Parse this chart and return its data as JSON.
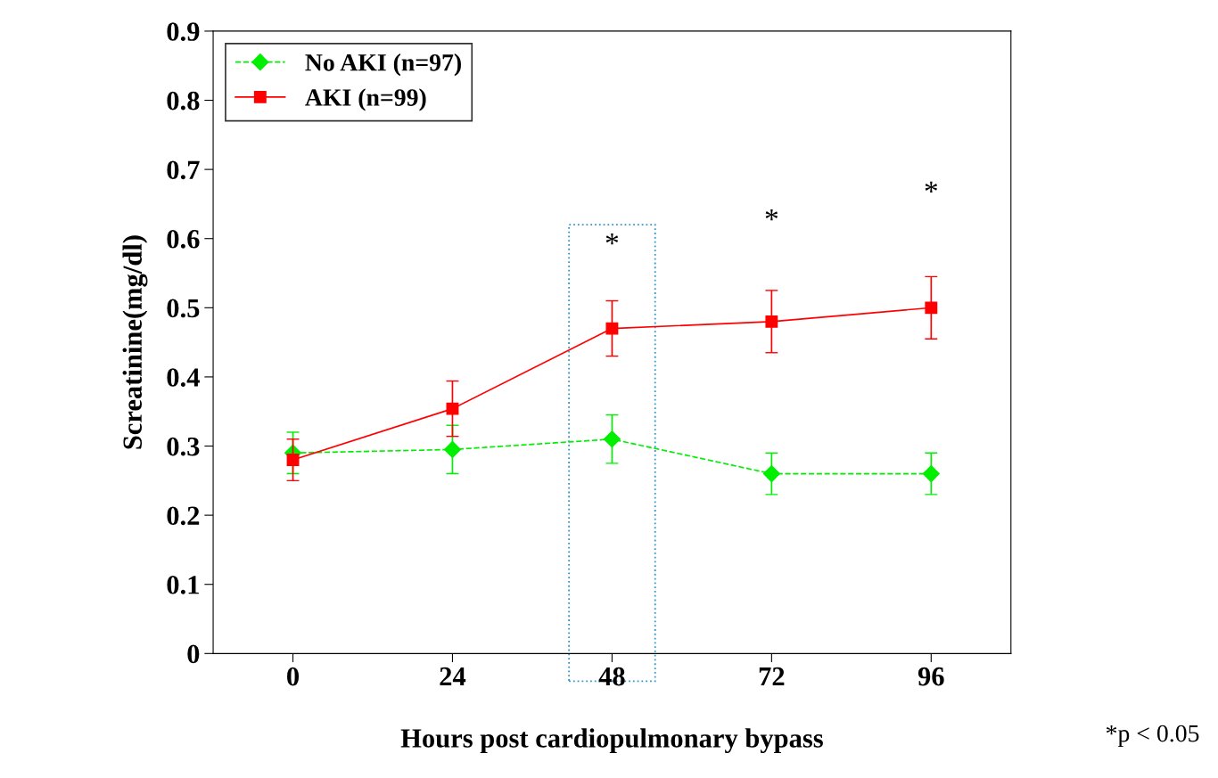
{
  "chart_data": {
    "type": "line",
    "xlabel": "Hours post cardiopulmonary bypass",
    "ylabel": "Screatinine(mg/dl)",
    "categories": [
      "0",
      "24",
      "48",
      "72",
      "96"
    ],
    "series": [
      {
        "name": "No AKI (n=97)",
        "color": "#00ee00",
        "values": [
          0.29,
          0.295,
          0.31,
          0.26,
          0.26
        ],
        "errors": [
          0.03,
          0.035,
          0.035,
          0.03,
          0.03
        ],
        "marker": "diamond",
        "line_style": "dashed"
      },
      {
        "name": "AKI (n=99)",
        "color": "#ff0000",
        "values": [
          0.28,
          0.354,
          0.47,
          0.48,
          0.5
        ],
        "errors": [
          0.03,
          0.04,
          0.04,
          0.045,
          0.045
        ],
        "marker": "square",
        "line_style": "solid"
      }
    ],
    "ylim": [
      0,
      0.9
    ],
    "yticks": [
      0,
      0.1,
      0.2,
      0.3,
      0.4,
      0.5,
      0.6,
      0.7,
      0.8,
      0.9
    ],
    "legend": "top left",
    "grid": false,
    "annotations": [
      "*",
      "*",
      "*",
      "*p < 0.05"
    ]
  }
}
